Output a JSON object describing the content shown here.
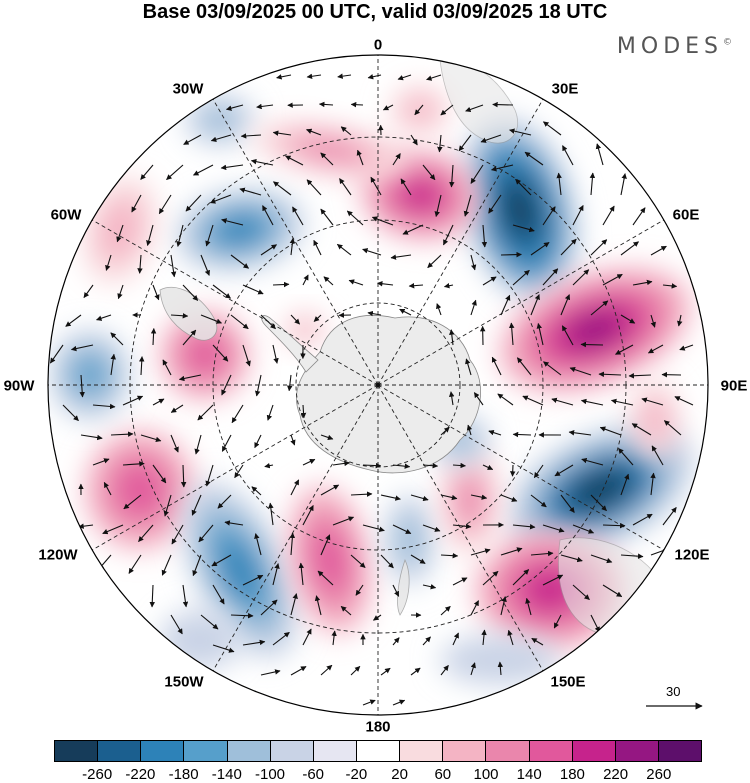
{
  "title": "Base 03/09/2025 00 UTC, valid 03/09/2025 18 UTC",
  "brand": "MODES",
  "brand_mark": "©",
  "lon_labels": [
    "0",
    "30E",
    "60E",
    "90E",
    "120E",
    "150E",
    "180",
    "150W",
    "120W",
    "90W",
    "60W",
    "30W"
  ],
  "reference_vector": {
    "label": "30"
  },
  "colorbar": {
    "colors": [
      "#163c5a",
      "#1b5f8f",
      "#2d82b8",
      "#569fcb",
      "#9fbfda",
      "#c9d3e6",
      "#e6e6f2",
      "#ffffff",
      "#f9dcdf",
      "#f4b4c4",
      "#ea86ac",
      "#e1589c",
      "#c6238c",
      "#951782",
      "#5d0f6b"
    ],
    "tick_labels": [
      "-260",
      "-220",
      "-180",
      "-140",
      "-100",
      "-60",
      "-20",
      "20",
      "60",
      "100",
      "140",
      "180",
      "220",
      "260"
    ]
  },
  "colors": {
    "land": "#e6e6e6",
    "grid": "#222222",
    "vector": "#111111"
  }
}
